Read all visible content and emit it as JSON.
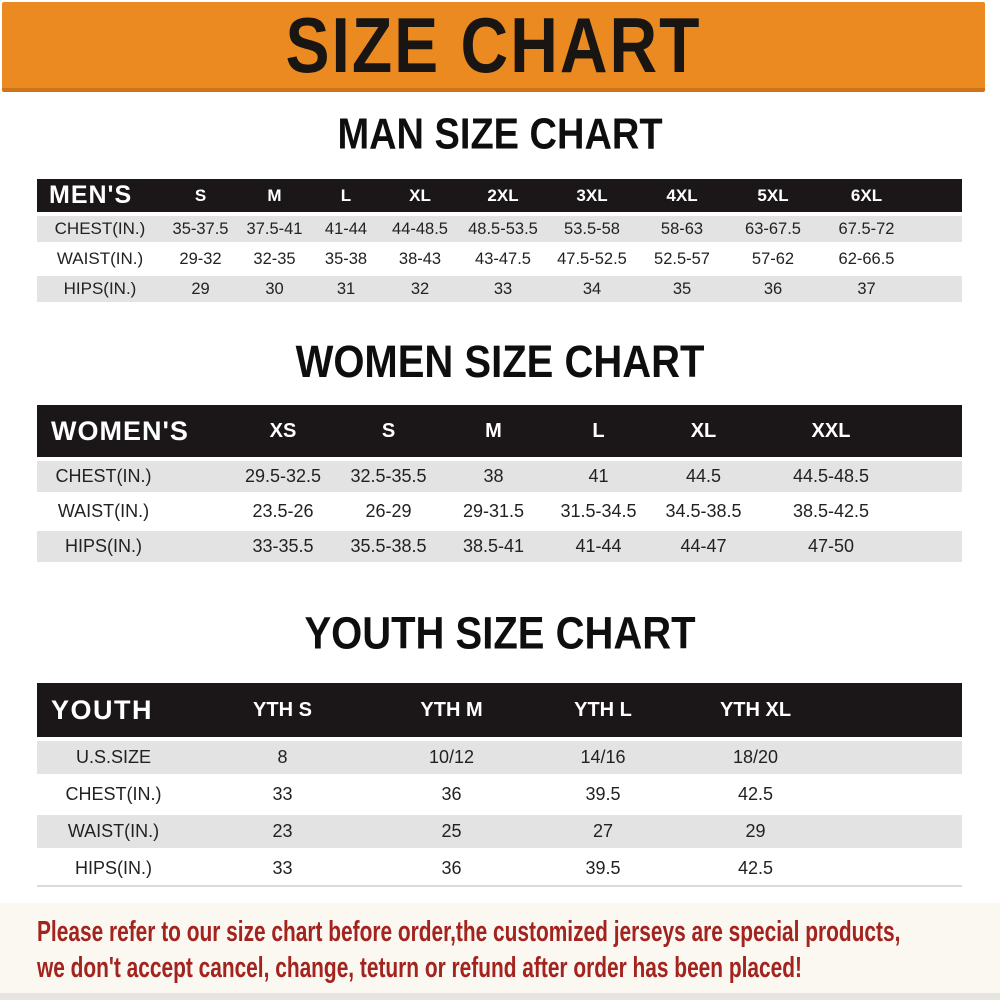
{
  "banner": {
    "title": "SIZE CHART",
    "bg_color": "#EC8A22",
    "text_color": "#181512"
  },
  "sections": [
    {
      "id": "men",
      "title": "MAN SIZE CHART",
      "header_label": "MEN'S",
      "columns": [
        "S",
        "M",
        "L",
        "XL",
        "2XL",
        "3XL",
        "4XL",
        "5XL",
        "6XL"
      ],
      "rows": [
        {
          "label": "CHEST(IN.)",
          "values": [
            "35-37.5",
            "37.5-41",
            "41-44",
            "44-48.5",
            "48.5-53.5",
            "53.5-58",
            "58-63",
            "63-67.5",
            "67.5-72"
          ]
        },
        {
          "label": "WAIST(IN.)",
          "values": [
            "29-32",
            "32-35",
            "35-38",
            "38-43",
            "43-47.5",
            "47.5-52.5",
            "52.5-57",
            "57-62",
            "62-66.5"
          ]
        },
        {
          "label": "HIPS(IN.)",
          "values": [
            "29",
            "30",
            "31",
            "32",
            "33",
            "34",
            "35",
            "36",
            "37"
          ]
        }
      ]
    },
    {
      "id": "women",
      "title": "WOMEN SIZE CHART",
      "header_label": "WOMEN'S",
      "columns": [
        "XS",
        "S",
        "M",
        "L",
        "XL",
        "XXL"
      ],
      "rows": [
        {
          "label": "CHEST(IN.)",
          "values": [
            "29.5-32.5",
            "32.5-35.5",
            "38",
            "41",
            "44.5",
            "44.5-48.5"
          ]
        },
        {
          "label": "WAIST(IN.)",
          "values": [
            "23.5-26",
            "26-29",
            "29-31.5",
            "31.5-34.5",
            "34.5-38.5",
            "38.5-42.5"
          ]
        },
        {
          "label": "HIPS(IN.)",
          "values": [
            "33-35.5",
            "35.5-38.5",
            "38.5-41",
            "41-44",
            "44-47",
            "47-50"
          ]
        }
      ]
    },
    {
      "id": "youth",
      "title": "YOUTH SIZE CHART",
      "header_label": "YOUTH",
      "columns": [
        "YTH S",
        "YTH M",
        "YTH L",
        "YTH XL"
      ],
      "rows": [
        {
          "label": "U.S.SIZE",
          "values": [
            "8",
            "10/12",
            "14/16",
            "18/20"
          ]
        },
        {
          "label": "CHEST(IN.)",
          "values": [
            "33",
            "36",
            "39.5",
            "42.5"
          ]
        },
        {
          "label": "WAIST(IN.)",
          "values": [
            "23",
            "25",
            "27",
            "29"
          ]
        },
        {
          "label": "HIPS(IN.)",
          "values": [
            "33",
            "36",
            "39.5",
            "42.5"
          ]
        }
      ]
    }
  ],
  "footer": {
    "line1": "Please refer to our size chart before order,the customized jerseys are special products,",
    "line2": "we don't accept cancel, change, teturn or refund after order has been placed!",
    "text_color": "#A3231E"
  },
  "colors": {
    "header_bar": "#1B1718",
    "row_gray": "#E3E3E3",
    "row_white": "#FFFFFF",
    "banner_orange": "#EC8A22",
    "footer_bg": "#FBF8F2"
  }
}
